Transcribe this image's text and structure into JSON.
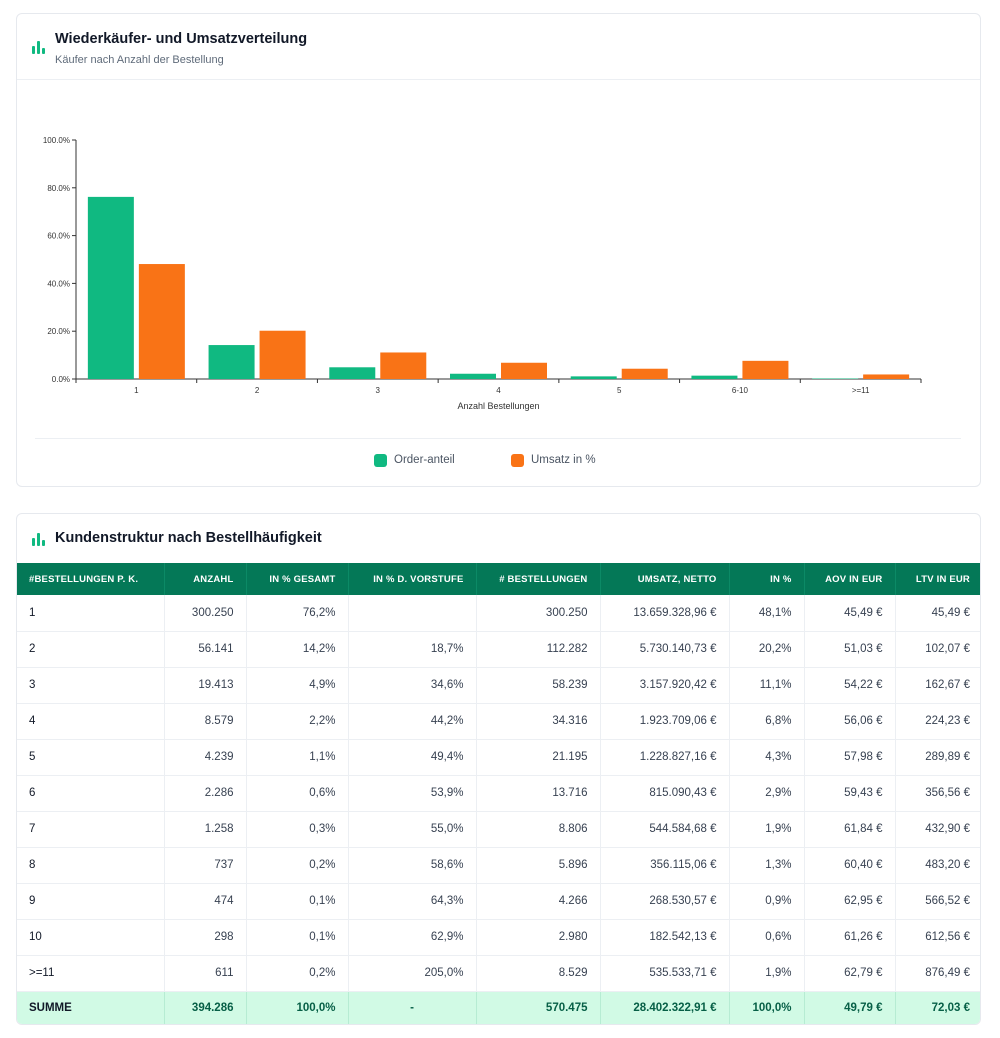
{
  "chart_card": {
    "title": "Wiederkäufer- und Umsatzverteilung",
    "subtitle": "Käufer nach Anzahl der Bestellung",
    "icon": "bar-chart-icon"
  },
  "chart_data": {
    "type": "bar",
    "categories": [
      "1",
      "2",
      "3",
      "4",
      "5",
      "6-10",
      ">=11"
    ],
    "series": [
      {
        "name": "Order-anteil",
        "color": "#10b981",
        "values": [
          76.2,
          14.2,
          4.9,
          2.2,
          1.1,
          1.4,
          0.2
        ]
      },
      {
        "name": "Umsatz in %",
        "color": "#f97316",
        "values": [
          48.1,
          20.2,
          11.1,
          6.8,
          4.3,
          7.6,
          1.9
        ]
      }
    ],
    "xlabel": "Anzahl Bestellungen",
    "ylabel": "",
    "ylim": [
      0,
      100
    ],
    "yticks": [
      "0.0%",
      "20.0%",
      "40.0%",
      "60.0%",
      "80.0%",
      "100.0%"
    ],
    "grid": false,
    "legend_position": "bottom-center"
  },
  "table_card": {
    "title": "Kundenstruktur nach Bestellhäufigkeit",
    "icon": "bar-chart-icon",
    "headers": [
      "#Bestellungen p. K.",
      "Anzahl",
      "in % gesamt",
      "in % d. Vorstufe",
      "# Bestellungen",
      "Umsatz, netto",
      "in %",
      "AOV in EUR",
      "LTV in EUR"
    ],
    "rows": [
      [
        "1",
        "300.250",
        "76,2%",
        "",
        "300.250",
        "13.659.328,96 €",
        "48,1%",
        "45,49 €",
        "45,49 €"
      ],
      [
        "2",
        "56.141",
        "14,2%",
        "18,7%",
        "112.282",
        "5.730.140,73 €",
        "20,2%",
        "51,03 €",
        "102,07 €"
      ],
      [
        "3",
        "19.413",
        "4,9%",
        "34,6%",
        "58.239",
        "3.157.920,42 €",
        "11,1%",
        "54,22 €",
        "162,67 €"
      ],
      [
        "4",
        "8.579",
        "2,2%",
        "44,2%",
        "34.316",
        "1.923.709,06 €",
        "6,8%",
        "56,06 €",
        "224,23 €"
      ],
      [
        "5",
        "4.239",
        "1,1%",
        "49,4%",
        "21.195",
        "1.228.827,16 €",
        "4,3%",
        "57,98 €",
        "289,89 €"
      ],
      [
        "6",
        "2.286",
        "0,6%",
        "53,9%",
        "13.716",
        "815.090,43 €",
        "2,9%",
        "59,43 €",
        "356,56 €"
      ],
      [
        "7",
        "1.258",
        "0,3%",
        "55,0%",
        "8.806",
        "544.584,68 €",
        "1,9%",
        "61,84 €",
        "432,90 €"
      ],
      [
        "8",
        "737",
        "0,2%",
        "58,6%",
        "5.896",
        "356.115,06 €",
        "1,3%",
        "60,40 €",
        "483,20 €"
      ],
      [
        "9",
        "474",
        "0,1%",
        "64,3%",
        "4.266",
        "268.530,57 €",
        "0,9%",
        "62,95 €",
        "566,52 €"
      ],
      [
        "10",
        "298",
        "0,1%",
        "62,9%",
        "2.980",
        "182.542,13 €",
        "0,6%",
        "61,26 €",
        "612,56 €"
      ],
      [
        ">=11",
        "611",
        "0,2%",
        "205,0%",
        "8.529",
        "535.533,71 €",
        "1,9%",
        "62,79 €",
        "876,49 €"
      ]
    ],
    "summary": [
      "SUMME",
      "394.286",
      "100,0%",
      "-",
      "570.475",
      "28.402.322,91 €",
      "100,0%",
      "49,79 €",
      "72,03 €"
    ]
  }
}
